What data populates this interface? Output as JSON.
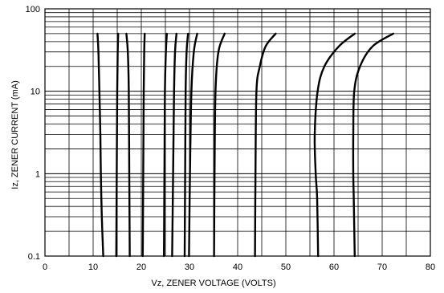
{
  "chart_data": {
    "type": "line",
    "title": "",
    "xlabel": "Vz, ZENER VOLTAGE (VOLTS)",
    "ylabel": "Iz, ZENER CURRENT (mA)",
    "xlim": [
      0,
      80
    ],
    "ylim": [
      0.1,
      100
    ],
    "yscale": "log",
    "grid": true,
    "legend": "none",
    "x_ticks": [
      "0",
      "10",
      "20",
      "30",
      "40",
      "50",
      "60",
      "70",
      "80"
    ],
    "y_ticks": [
      "0.1",
      "1",
      "10",
      "100"
    ],
    "series": [
      {
        "values": [
          [
            12.1,
            0.1
          ],
          [
            11.8,
            0.3
          ],
          [
            11.6,
            1
          ],
          [
            11.5,
            3
          ],
          [
            11.3,
            10
          ],
          [
            11.1,
            30
          ],
          [
            10.9,
            50
          ]
        ]
      },
      {
        "values": [
          [
            14.8,
            0.1
          ],
          [
            14.9,
            1
          ],
          [
            15.0,
            10
          ],
          [
            15.1,
            30
          ],
          [
            15.2,
            50
          ]
        ]
      },
      {
        "values": [
          [
            17.6,
            0.1
          ],
          [
            17.5,
            1
          ],
          [
            17.4,
            10
          ],
          [
            17.2,
            30
          ],
          [
            16.9,
            50
          ]
        ]
      },
      {
        "values": [
          [
            20.3,
            0.1
          ],
          [
            20.4,
            1
          ],
          [
            20.5,
            10
          ],
          [
            20.6,
            30
          ],
          [
            20.7,
            50
          ]
        ]
      },
      {
        "values": [
          [
            24.7,
            0.1
          ],
          [
            24.8,
            1
          ],
          [
            24.9,
            10
          ],
          [
            25.1,
            30
          ],
          [
            25.3,
            50
          ]
        ]
      },
      {
        "values": [
          [
            26.4,
            0.1
          ],
          [
            26.6,
            1
          ],
          [
            26.8,
            10
          ],
          [
            27.0,
            30
          ],
          [
            27.3,
            50
          ]
        ]
      },
      {
        "values": [
          [
            29.0,
            0.1
          ],
          [
            29.1,
            1
          ],
          [
            29.2,
            10
          ],
          [
            29.4,
            30
          ],
          [
            29.7,
            50
          ]
        ]
      },
      {
        "values": [
          [
            29.9,
            0.1
          ],
          [
            30.1,
            1
          ],
          [
            30.4,
            10
          ],
          [
            30.9,
            30
          ],
          [
            31.6,
            50
          ]
        ]
      },
      {
        "values": [
          [
            35.1,
            0.1
          ],
          [
            35.2,
            1
          ],
          [
            35.4,
            10
          ],
          [
            36.0,
            30
          ],
          [
            37.3,
            50
          ]
        ]
      },
      {
        "values": [
          [
            43.6,
            0.1
          ],
          [
            43.7,
            1
          ],
          [
            43.9,
            10
          ],
          [
            44.6,
            20
          ],
          [
            45.8,
            35
          ],
          [
            47.9,
            50
          ]
        ]
      },
      {
        "values": [
          [
            56.7,
            0.1
          ],
          [
            56.5,
            0.5
          ],
          [
            56.2,
            1
          ],
          [
            56.0,
            3
          ],
          [
            56.6,
            10
          ],
          [
            58.0,
            20
          ],
          [
            61.0,
            35
          ],
          [
            64.3,
            50
          ]
        ]
      },
      {
        "values": [
          [
            64.3,
            0.1
          ],
          [
            64.1,
            0.5
          ],
          [
            64.0,
            1
          ],
          [
            64.0,
            3
          ],
          [
            64.2,
            10
          ],
          [
            65.4,
            20
          ],
          [
            68.0,
            35
          ],
          [
            72.3,
            50
          ]
        ]
      }
    ]
  }
}
